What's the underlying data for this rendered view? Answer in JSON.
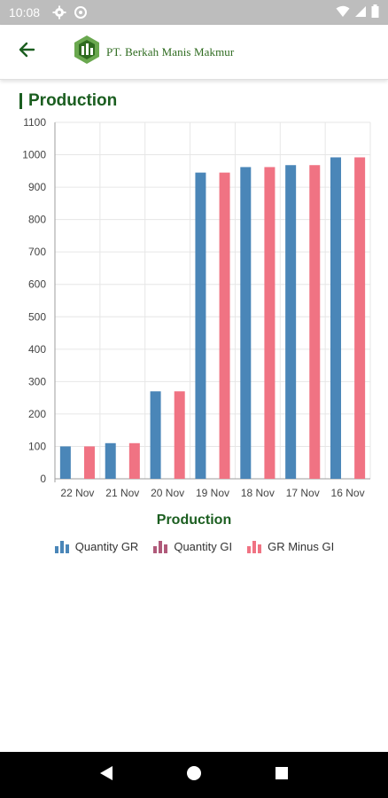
{
  "status_bar": {
    "time": "10:08",
    "left_icons": [
      "gear-icon",
      "data-saver-icon"
    ],
    "right_icons": [
      "wifi-icon",
      "signal-icon",
      "battery-icon"
    ]
  },
  "app_bar": {
    "back_icon": "arrow-left-icon",
    "logo_text": "PT. Berkah Manis Makmur",
    "accent_color": "#2e6b1f"
  },
  "section": {
    "title": "Production",
    "color": "#1b5e20"
  },
  "chart_data": {
    "type": "bar",
    "title": "Production",
    "categories": [
      "22 Nov",
      "21 Nov",
      "20 Nov",
      "19 Nov",
      "18 Nov",
      "17 Nov",
      "16 Nov"
    ],
    "series": [
      {
        "name": "Quantity GR",
        "color": "#4a86b8",
        "values": [
          100,
          110,
          270,
          945,
          962,
          968,
          992
        ]
      },
      {
        "name": "Quantity GI",
        "color": "#b05a7a",
        "values": [
          0,
          0,
          0,
          0,
          0,
          0,
          0
        ]
      },
      {
        "name": "GR Minus GI",
        "color": "#f07383",
        "values": [
          100,
          110,
          270,
          945,
          962,
          968,
          992
        ]
      }
    ],
    "ylim": [
      0,
      1100
    ],
    "yticks": [
      0,
      100,
      200,
      300,
      400,
      500,
      600,
      700,
      800,
      900,
      1000,
      1100
    ],
    "grid": true,
    "legend_position": "bottom"
  },
  "nav_bar": {
    "buttons": [
      "back-triangle-icon",
      "home-circle-icon",
      "recents-square-icon"
    ]
  }
}
